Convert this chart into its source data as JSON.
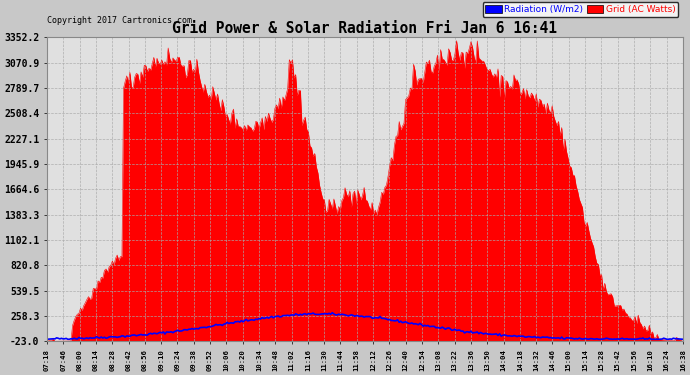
{
  "title": "Grid Power & Solar Radiation Fri Jan 6 16:41",
  "copyright": "Copyright 2017 Cartronics.com",
  "legend_radiation": "Radiation (W/m2)",
  "legend_grid": "Grid (AC Watts)",
  "yticks": [
    -23.0,
    258.3,
    539.5,
    820.8,
    1102.1,
    1383.3,
    1664.6,
    1945.9,
    2227.1,
    2508.4,
    2789.7,
    3070.9,
    3352.2
  ],
  "ymin": -23.0,
  "ymax": 3352.2,
  "bg_color": "#c8c8c8",
  "plot_bg_color": "#e0e0e0",
  "grid_color": "#aaaaaa",
  "radiation_color": "#0000ff",
  "grid_watts_color": "#ff0000",
  "xtick_labels": [
    "07:18",
    "07:46",
    "08:00",
    "08:14",
    "08:28",
    "08:42",
    "08:56",
    "09:10",
    "09:24",
    "09:38",
    "09:52",
    "10:06",
    "10:20",
    "10:34",
    "10:48",
    "11:02",
    "11:16",
    "11:30",
    "11:44",
    "11:58",
    "12:12",
    "12:26",
    "12:40",
    "12:54",
    "13:08",
    "13:22",
    "13:36",
    "13:50",
    "14:04",
    "14:18",
    "14:32",
    "14:46",
    "15:00",
    "15:14",
    "15:28",
    "15:42",
    "15:56",
    "16:10",
    "16:24",
    "16:38"
  ]
}
